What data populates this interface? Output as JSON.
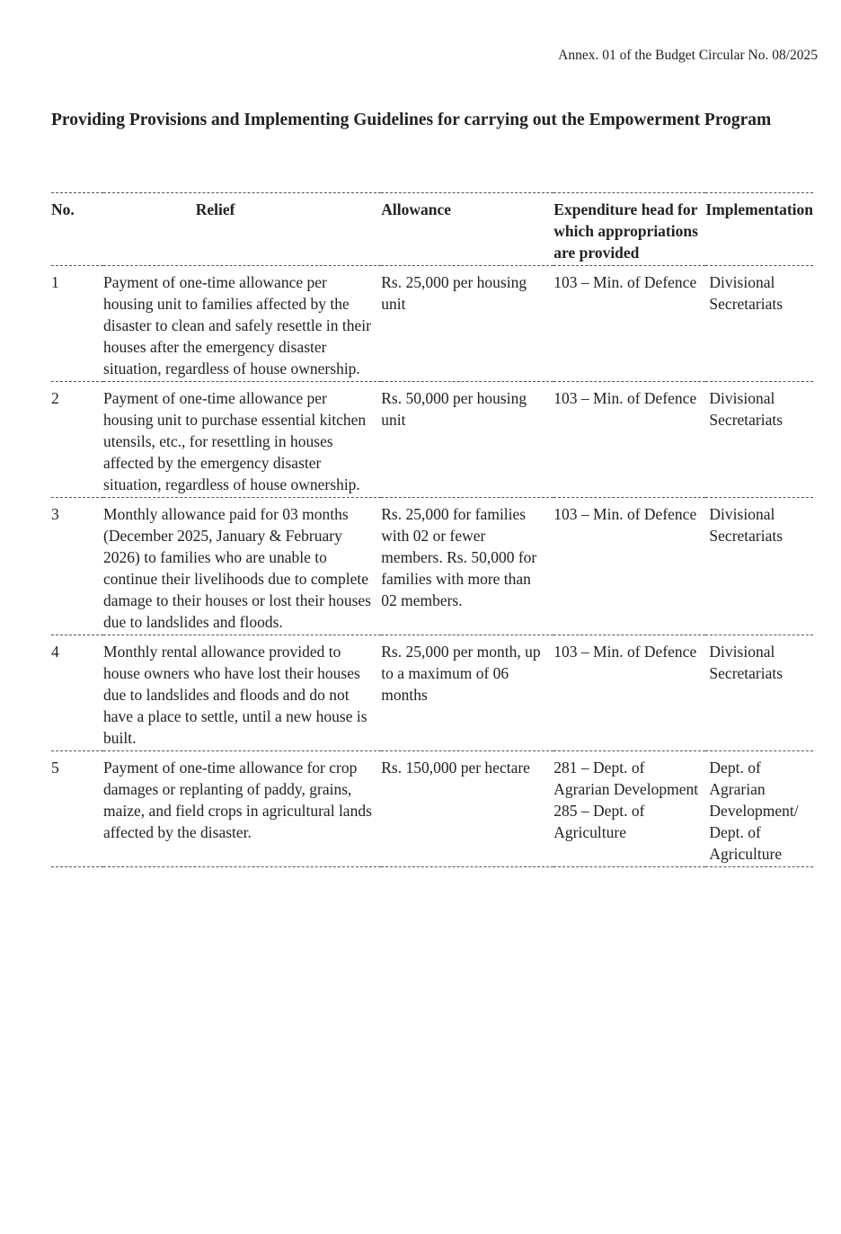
{
  "annex": "Annex. 01 of the Budget Circular No. 08/2025",
  "title": "Providing Provisions and Implementing Guidelines for carrying out the Empowerment Program",
  "table": {
    "headers": [
      "No.",
      "Relief",
      "Allowance",
      "Expenditure head for which appropriations are provided",
      "Implementation"
    ],
    "rows": [
      {
        "no": "1",
        "relief": "Payment of one-time allowance per housing unit to families affected by the disaster to clean and safely resettle in their houses after the emergency disaster situation, regardless of house ownership.",
        "allowance": "Rs. 25,000 per housing unit",
        "expenditure": "103 – Min. of Defence",
        "implementation": "Divisional Secretariats"
      },
      {
        "no": "2",
        "relief": "Payment of one-time allowance per housing unit to purchase essential kitchen utensils, etc., for resettling in houses affected by the emergency disaster situation, regardless of house ownership.",
        "allowance": "Rs. 50,000 per housing unit",
        "expenditure": "103 – Min. of Defence",
        "implementation": "Divisional Secretariats"
      },
      {
        "no": "3",
        "relief": "Monthly allowance paid for 03 months (December 2025, January & February 2026) to families who are unable to continue their livelihoods due to complete damage to their houses or lost their houses due to landslides and floods.",
        "allowance": "Rs. 25,000 for families with 02 or fewer members. Rs. 50,000 for families with more than 02 members.",
        "expenditure": "103 – Min. of Defence",
        "implementation": "Divisional Secretariats"
      },
      {
        "no": "4",
        "relief": "Monthly rental allowance provided to house owners who have lost their houses due to landslides and floods and do not have a place to settle, until a new house is built.",
        "allowance": "Rs. 25,000 per month, up to a maximum of 06 months",
        "expenditure": "103 – Min. of Defence",
        "implementation": "Divisional Secretariats"
      },
      {
        "no": "5",
        "relief": "Payment of one-time allowance for crop damages or replanting of paddy, grains, maize, and field crops in agricultural lands affected by the disaster.",
        "allowance": "Rs. 150,000 per hectare",
        "expenditure": "281 – Dept. of Agrarian Development 285 – Dept. of Agriculture",
        "implementation": "Dept. of Agrarian Development/ Dept. of Agriculture"
      }
    ]
  }
}
